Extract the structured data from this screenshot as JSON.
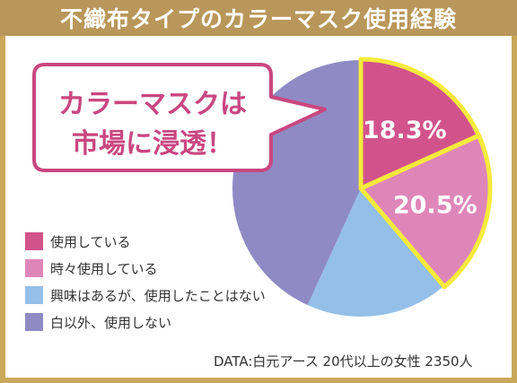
{
  "title": "不織布タイプのカラーマスク使用経験",
  "callout": {
    "line1": "カラーマスクは",
    "line2": "市場に浸透！"
  },
  "footnote": "DATA:白元アース 20代以上の女性 2350人",
  "chart_data": {
    "type": "pie",
    "categories": [
      "使用している",
      "時々使用している",
      "興味はあるが、使用したことはない",
      "白以外、使用しない"
    ],
    "values": [
      18.3,
      20.5,
      18.0,
      43.2
    ],
    "value_labels": [
      "18.3%",
      "20.5%",
      "",
      ""
    ],
    "colors": [
      "#d2538c",
      "#df86b9",
      "#94bfe8",
      "#8f8ac4"
    ],
    "highlighted": [
      true,
      true,
      false,
      false
    ],
    "highlight_color": "#f5ea3c",
    "legend_position": "left",
    "start": "12 o'clock, clockwise"
  }
}
